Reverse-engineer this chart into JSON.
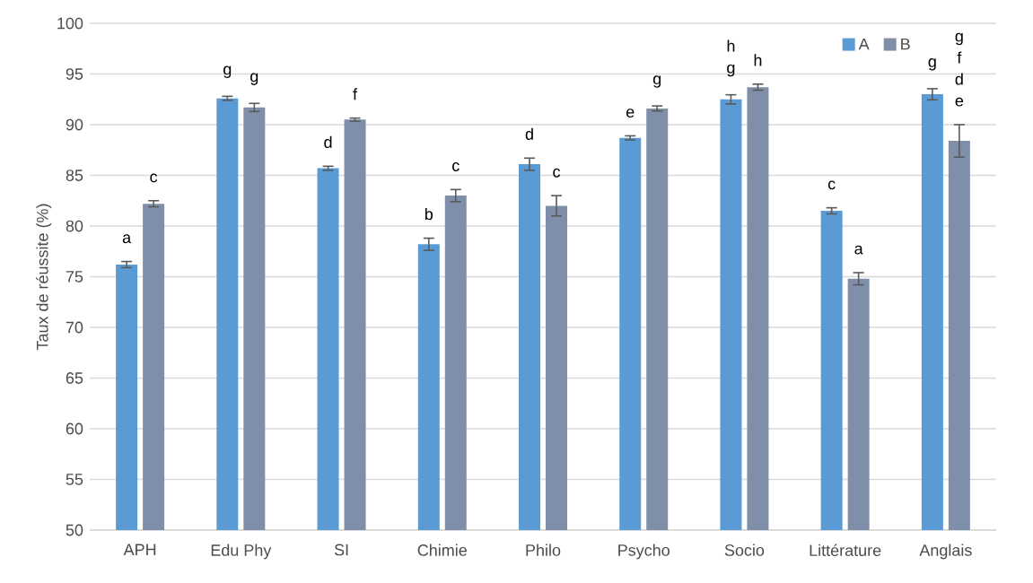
{
  "chart_data": {
    "type": "bar",
    "ylabel": "Taux de réussite (%)",
    "categories": [
      "APH",
      "Edu Phy",
      "SI",
      "Chimie",
      "Philo",
      "Psycho",
      "Socio",
      "Littérature",
      "Anglais"
    ],
    "series": [
      {
        "name": "A",
        "color": "#5b9bd5",
        "values": [
          76.2,
          92.6,
          85.7,
          78.2,
          86.1,
          88.7,
          92.5,
          81.5,
          93.0
        ],
        "errors": [
          0.3,
          0.2,
          0.2,
          0.6,
          0.6,
          0.2,
          0.45,
          0.3,
          0.55
        ],
        "value_labels": [
          "a",
          "g",
          "d",
          "b",
          "d",
          "e",
          "h g",
          "c",
          "g"
        ]
      },
      {
        "name": "B",
        "color": "#7f8fa9",
        "values": [
          82.2,
          91.7,
          90.5,
          83.0,
          82.0,
          91.6,
          93.7,
          74.8,
          88.4
        ],
        "errors": [
          0.3,
          0.4,
          0.15,
          0.6,
          1.0,
          0.25,
          0.3,
          0.6,
          1.6
        ],
        "value_labels": [
          "c",
          "g",
          "f",
          "c",
          "c",
          "g",
          "h",
          "a",
          "g f d e"
        ]
      }
    ],
    "ylim": [
      50,
      100
    ],
    "yticks": [
      50,
      55,
      60,
      65,
      70,
      75,
      80,
      85,
      90,
      95,
      100
    ],
    "grid": "y",
    "legend": "top right"
  }
}
